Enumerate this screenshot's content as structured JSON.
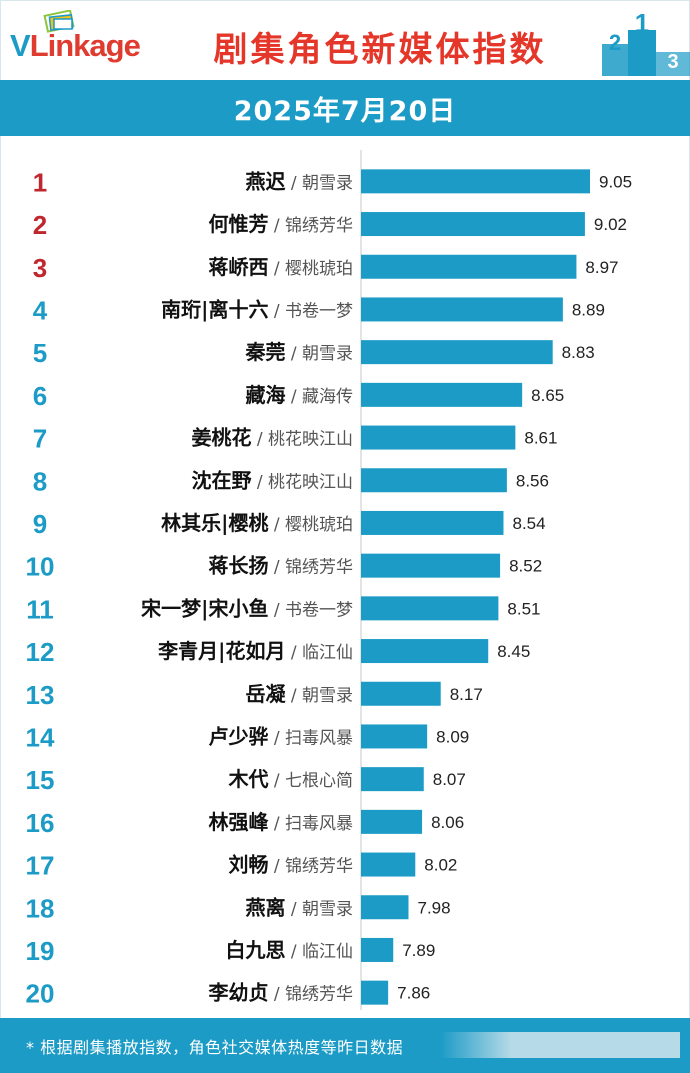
{
  "header": {
    "logo_text_v": "V",
    "logo_text_rest": "Linkage",
    "title": "剧集角色新媒体指数",
    "podium": [
      "2",
      "1",
      "3"
    ]
  },
  "date": "2025年7月20日",
  "footer": {
    "note": "* 根据剧集播放指数，角色社交媒体热度等昨日数据"
  },
  "colors": {
    "accent": "#1b9bc6",
    "top_rank": "#c0262d",
    "rank": "#1b9bc6",
    "title_red": "#e5362a"
  },
  "chart_data": {
    "type": "bar",
    "orientation": "horizontal",
    "title": "剧集角色新媒体指数",
    "subtitle": "2025年7月20日",
    "xlabel": "",
    "ylabel": "",
    "xlim": [
      7.7,
      9.3
    ],
    "categories": [
      {
        "rank": "1",
        "name": "燕迟",
        "show": "朝雪录"
      },
      {
        "rank": "2",
        "name": "何惟芳",
        "show": "锦绣芳华"
      },
      {
        "rank": "3",
        "name": "蒋峤西",
        "show": "樱桃琥珀"
      },
      {
        "rank": "4",
        "name": "南珩|离十六",
        "show": "书卷一梦"
      },
      {
        "rank": "5",
        "name": "秦莞",
        "show": "朝雪录"
      },
      {
        "rank": "6",
        "name": "藏海",
        "show": "藏海传"
      },
      {
        "rank": "7",
        "name": "姜桃花",
        "show": "桃花映江山"
      },
      {
        "rank": "8",
        "name": "沈在野",
        "show": "桃花映江山"
      },
      {
        "rank": "9",
        "name": "林其乐|樱桃",
        "show": "樱桃琥珀"
      },
      {
        "rank": "10",
        "name": "蒋长扬",
        "show": "锦绣芳华"
      },
      {
        "rank": "11",
        "name": "宋一梦|宋小鱼",
        "show": "书卷一梦"
      },
      {
        "rank": "12",
        "name": "李青月|花如月",
        "show": "临江仙"
      },
      {
        "rank": "13",
        "name": "岳凝",
        "show": "朝雪录"
      },
      {
        "rank": "14",
        "name": "卢少骅",
        "show": "扫毒风暴"
      },
      {
        "rank": "15",
        "name": "木代",
        "show": "七根心简"
      },
      {
        "rank": "16",
        "name": "林强峰",
        "show": "扫毒风暴"
      },
      {
        "rank": "17",
        "name": "刘畅",
        "show": "锦绣芳华"
      },
      {
        "rank": "18",
        "name": "燕离",
        "show": "朝雪录"
      },
      {
        "rank": "19",
        "name": "白九思",
        "show": "临江仙"
      },
      {
        "rank": "20",
        "name": "李幼贞",
        "show": "锦绣芳华"
      }
    ],
    "values": [
      9.05,
      9.02,
      8.97,
      8.89,
      8.83,
      8.65,
      8.61,
      8.56,
      8.54,
      8.52,
      8.51,
      8.45,
      8.17,
      8.09,
      8.07,
      8.06,
      8.02,
      7.98,
      7.89,
      7.86
    ],
    "value_labels": [
      "9.05",
      "9.02",
      "8.97",
      "8.89",
      "8.83",
      "8.65",
      "8.61",
      "8.56",
      "8.54",
      "8.52",
      "8.51",
      "8.45",
      "8.17",
      "8.09",
      "8.07",
      "8.06",
      "8.02",
      "7.98",
      "7.89",
      "7.86"
    ],
    "separator": " / ",
    "grid": false,
    "legend": "none"
  }
}
